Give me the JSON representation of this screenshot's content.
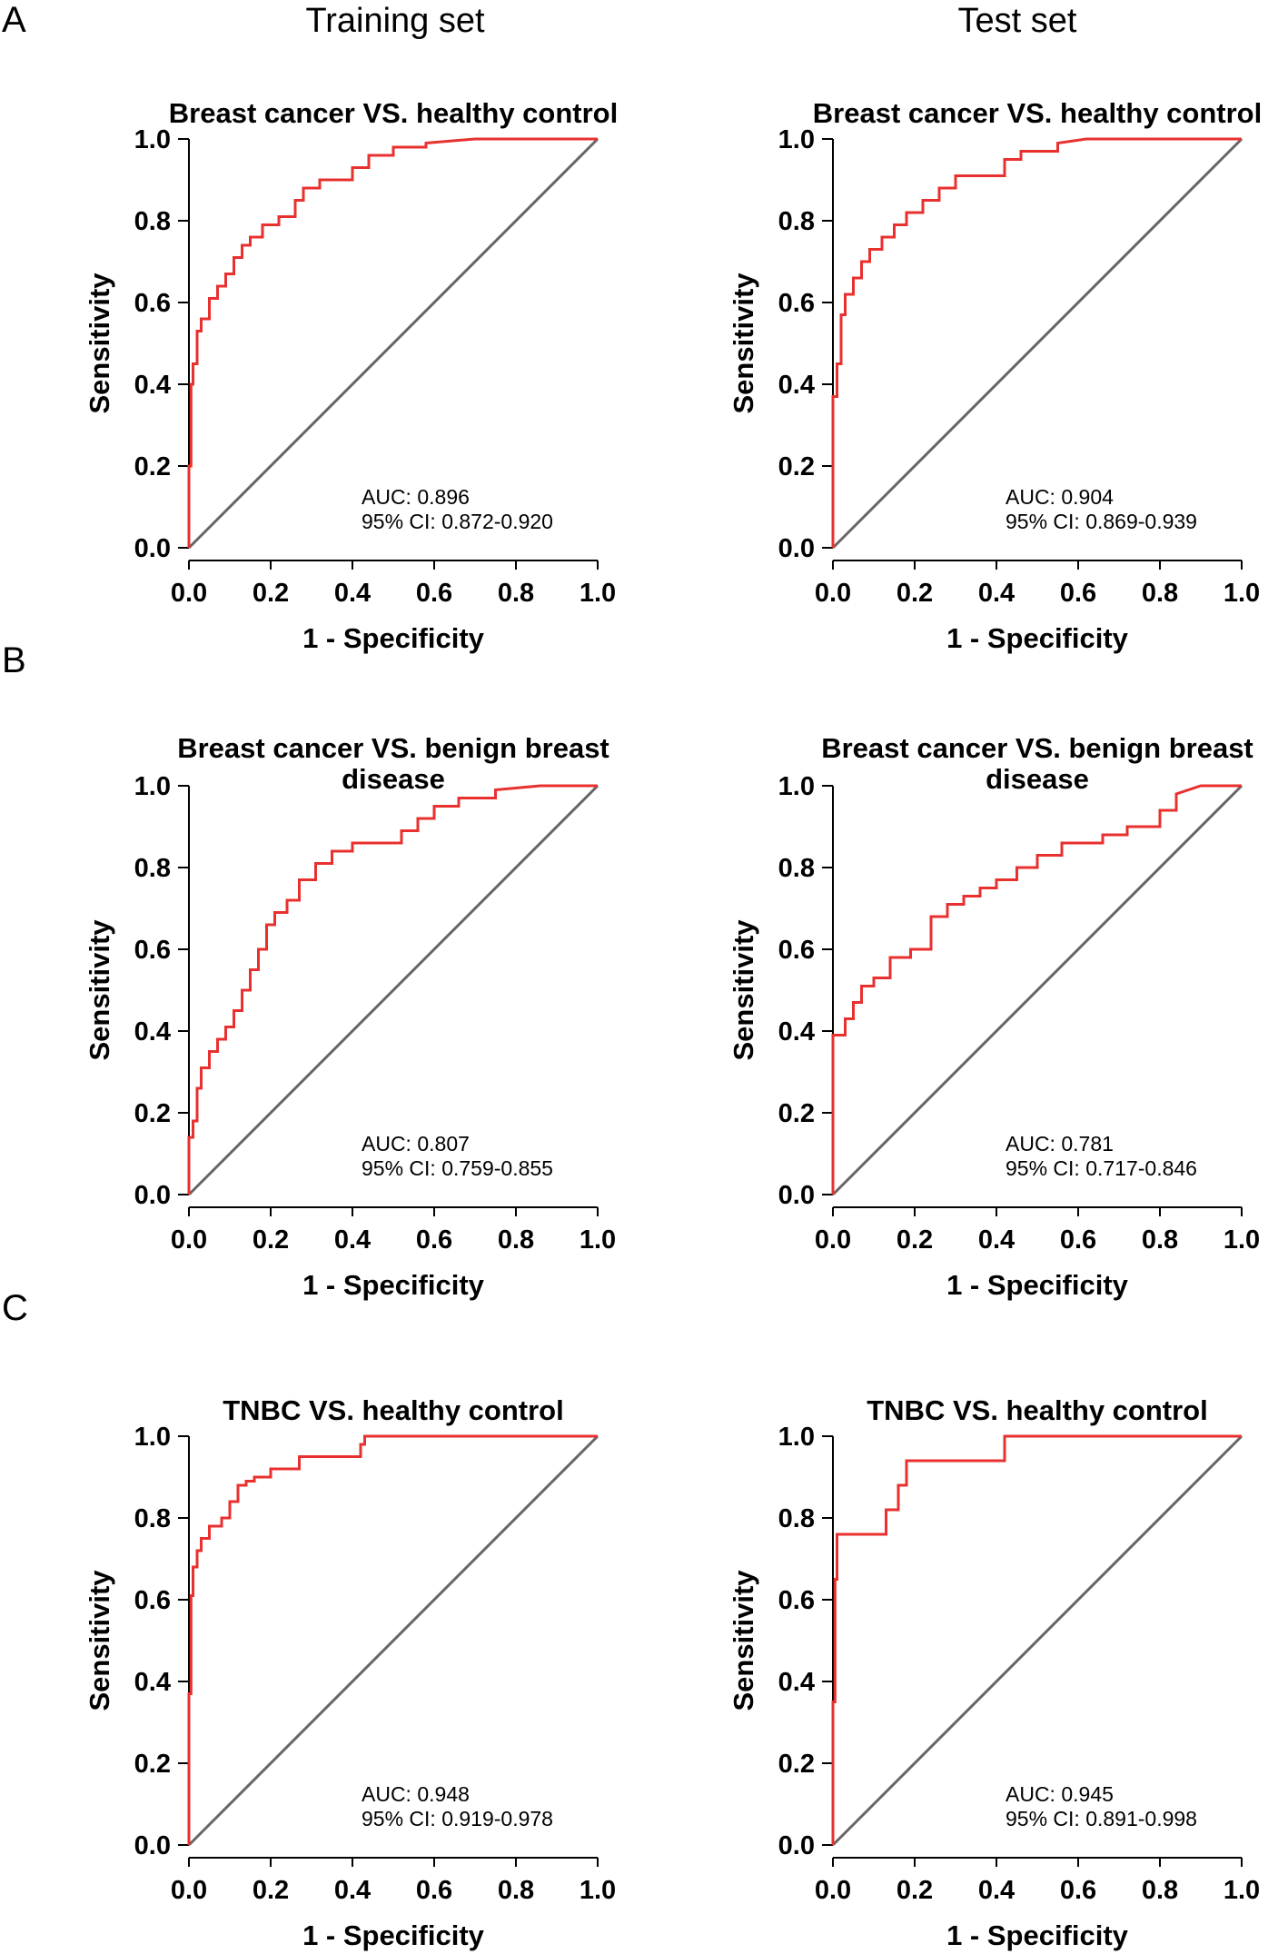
{
  "column_headers": [
    "Training set",
    "Test set"
  ],
  "panel_letters": [
    "A",
    "B",
    "C"
  ],
  "chart_data": [
    {
      "type": "line",
      "panel": "A",
      "set": "Training set",
      "title": [
        "Breast cancer VS. healthy control"
      ],
      "xlabel": "1 - Specificity",
      "ylabel": "Sensitivity",
      "xlim": [
        0,
        1
      ],
      "ylim": [
        0,
        1
      ],
      "xticks": [
        "0.0",
        "0.2",
        "0.4",
        "0.6",
        "0.8",
        "1.0"
      ],
      "yticks": [
        "0.0",
        "0.2",
        "0.4",
        "0.6",
        "0.8",
        "1.0"
      ],
      "annotation": [
        "AUC: 0.896",
        "95% CI: 0.872-0.920"
      ],
      "series": [
        {
          "name": "ROC",
          "color": "#e8312f",
          "x": [
            0,
            0,
            0.005,
            0.005,
            0.01,
            0.01,
            0.02,
            0.02,
            0.03,
            0.03,
            0.05,
            0.05,
            0.07,
            0.07,
            0.09,
            0.09,
            0.11,
            0.11,
            0.13,
            0.13,
            0.15,
            0.15,
            0.18,
            0.18,
            0.22,
            0.22,
            0.26,
            0.26,
            0.28,
            0.28,
            0.32,
            0.32,
            0.4,
            0.4,
            0.44,
            0.44,
            0.5,
            0.5,
            0.58,
            0.58,
            0.7,
            1.0
          ],
          "y": [
            0,
            0.2,
            0.2,
            0.4,
            0.4,
            0.45,
            0.45,
            0.53,
            0.53,
            0.56,
            0.56,
            0.61,
            0.61,
            0.64,
            0.64,
            0.67,
            0.67,
            0.71,
            0.71,
            0.74,
            0.74,
            0.76,
            0.76,
            0.79,
            0.79,
            0.81,
            0.81,
            0.85,
            0.85,
            0.88,
            0.88,
            0.9,
            0.9,
            0.93,
            0.93,
            0.96,
            0.96,
            0.98,
            0.98,
            0.99,
            1.0,
            1.0
          ]
        },
        {
          "name": "Reference",
          "color": "#666666",
          "x": [
            0,
            1
          ],
          "y": [
            0,
            1
          ]
        }
      ]
    },
    {
      "type": "line",
      "panel": "A",
      "set": "Test set",
      "title": [
        "Breast cancer VS. healthy control"
      ],
      "xlabel": "1 - Specificity",
      "ylabel": "Sensitivity",
      "xlim": [
        0,
        1
      ],
      "ylim": [
        0,
        1
      ],
      "xticks": [
        "0.0",
        "0.2",
        "0.4",
        "0.6",
        "0.8",
        "1.0"
      ],
      "yticks": [
        "0.0",
        "0.2",
        "0.4",
        "0.6",
        "0.8",
        "1.0"
      ],
      "annotation": [
        "AUC: 0.904",
        "95% CI: 0.869-0.939"
      ],
      "series": [
        {
          "name": "ROC",
          "color": "#e8312f",
          "x": [
            0,
            0,
            0.01,
            0.01,
            0.02,
            0.02,
            0.03,
            0.03,
            0.05,
            0.05,
            0.07,
            0.07,
            0.09,
            0.09,
            0.12,
            0.12,
            0.15,
            0.15,
            0.18,
            0.18,
            0.22,
            0.22,
            0.26,
            0.26,
            0.3,
            0.3,
            0.42,
            0.42,
            0.46,
            0.46,
            0.55,
            0.55,
            0.62,
            1.0
          ],
          "y": [
            0,
            0.37,
            0.37,
            0.45,
            0.45,
            0.57,
            0.57,
            0.62,
            0.62,
            0.66,
            0.66,
            0.7,
            0.7,
            0.73,
            0.73,
            0.76,
            0.76,
            0.79,
            0.79,
            0.82,
            0.82,
            0.85,
            0.85,
            0.88,
            0.88,
            0.91,
            0.91,
            0.95,
            0.95,
            0.97,
            0.97,
            0.99,
            1.0,
            1.0
          ]
        },
        {
          "name": "Reference",
          "color": "#666666",
          "x": [
            0,
            1
          ],
          "y": [
            0,
            1
          ]
        }
      ]
    },
    {
      "type": "line",
      "panel": "B",
      "set": "Training set",
      "title": [
        "Breast cancer VS. benign breast",
        "disease"
      ],
      "xlabel": "1 - Specificity",
      "ylabel": "Sensitivity",
      "xlim": [
        0,
        1
      ],
      "ylim": [
        0,
        1
      ],
      "xticks": [
        "0.0",
        "0.2",
        "0.4",
        "0.6",
        "0.8",
        "1.0"
      ],
      "yticks": [
        "0.0",
        "0.2",
        "0.4",
        "0.6",
        "0.8",
        "1.0"
      ],
      "annotation": [
        "AUC: 0.807",
        "95% CI: 0.759-0.855"
      ],
      "series": [
        {
          "name": "ROC",
          "color": "#e8312f",
          "x": [
            0,
            0,
            0.01,
            0.01,
            0.02,
            0.02,
            0.03,
            0.03,
            0.05,
            0.05,
            0.07,
            0.07,
            0.09,
            0.09,
            0.11,
            0.11,
            0.13,
            0.13,
            0.15,
            0.15,
            0.17,
            0.17,
            0.19,
            0.19,
            0.21,
            0.21,
            0.24,
            0.24,
            0.27,
            0.27,
            0.31,
            0.31,
            0.35,
            0.35,
            0.4,
            0.4,
            0.52,
            0.52,
            0.56,
            0.56,
            0.6,
            0.6,
            0.66,
            0.66,
            0.75,
            0.75,
            0.86,
            1.0
          ],
          "y": [
            0,
            0.14,
            0.14,
            0.18,
            0.18,
            0.26,
            0.26,
            0.31,
            0.31,
            0.35,
            0.35,
            0.38,
            0.38,
            0.41,
            0.41,
            0.45,
            0.45,
            0.5,
            0.5,
            0.55,
            0.55,
            0.6,
            0.6,
            0.66,
            0.66,
            0.69,
            0.69,
            0.72,
            0.72,
            0.77,
            0.77,
            0.81,
            0.81,
            0.84,
            0.84,
            0.86,
            0.86,
            0.89,
            0.89,
            0.92,
            0.92,
            0.95,
            0.95,
            0.97,
            0.97,
            0.99,
            1.0,
            1.0
          ]
        },
        {
          "name": "Reference",
          "color": "#666666",
          "x": [
            0,
            1
          ],
          "y": [
            0,
            1
          ]
        }
      ]
    },
    {
      "type": "line",
      "panel": "B",
      "set": "Test set",
      "title": [
        "Breast cancer VS. benign breast",
        "disease"
      ],
      "xlabel": "1 - Specificity",
      "ylabel": "Sensitivity",
      "xlim": [
        0,
        1
      ],
      "ylim": [
        0,
        1
      ],
      "xticks": [
        "0.0",
        "0.2",
        "0.4",
        "0.6",
        "0.8",
        "1.0"
      ],
      "yticks": [
        "0.0",
        "0.2",
        "0.4",
        "0.6",
        "0.8",
        "1.0"
      ],
      "annotation": [
        "AUC: 0.781",
        "95% CI: 0.717-0.846"
      ],
      "series": [
        {
          "name": "ROC",
          "color": "#e8312f",
          "x": [
            0,
            0,
            0.03,
            0.03,
            0.05,
            0.05,
            0.07,
            0.07,
            0.1,
            0.1,
            0.14,
            0.14,
            0.19,
            0.19,
            0.24,
            0.24,
            0.28,
            0.28,
            0.32,
            0.32,
            0.36,
            0.36,
            0.4,
            0.4,
            0.45,
            0.45,
            0.5,
            0.5,
            0.56,
            0.56,
            0.66,
            0.66,
            0.72,
            0.72,
            0.8,
            0.8,
            0.84,
            0.84,
            0.9,
            1.0
          ],
          "y": [
            0,
            0.39,
            0.39,
            0.43,
            0.43,
            0.47,
            0.47,
            0.51,
            0.51,
            0.53,
            0.53,
            0.58,
            0.58,
            0.6,
            0.6,
            0.68,
            0.68,
            0.71,
            0.71,
            0.73,
            0.73,
            0.75,
            0.75,
            0.77,
            0.77,
            0.8,
            0.8,
            0.83,
            0.83,
            0.86,
            0.86,
            0.88,
            0.88,
            0.9,
            0.9,
            0.94,
            0.94,
            0.98,
            1.0,
            1.0
          ]
        },
        {
          "name": "Reference",
          "color": "#666666",
          "x": [
            0,
            1
          ],
          "y": [
            0,
            1
          ]
        }
      ]
    },
    {
      "type": "line",
      "panel": "C",
      "set": "Training set",
      "title": [
        "TNBC VS. healthy control"
      ],
      "xlabel": "1 - Specificity",
      "ylabel": "Sensitivity",
      "xlim": [
        0,
        1
      ],
      "ylim": [
        0,
        1
      ],
      "xticks": [
        "0.0",
        "0.2",
        "0.4",
        "0.6",
        "0.8",
        "1.0"
      ],
      "yticks": [
        "0.0",
        "0.2",
        "0.4",
        "0.6",
        "0.8",
        "1.0"
      ],
      "annotation": [
        "AUC: 0.948",
        "95% CI: 0.919-0.978"
      ],
      "series": [
        {
          "name": "ROC",
          "color": "#e8312f",
          "x": [
            0,
            0,
            0.005,
            0.005,
            0.01,
            0.01,
            0.02,
            0.02,
            0.03,
            0.03,
            0.05,
            0.05,
            0.08,
            0.08,
            0.1,
            0.1,
            0.12,
            0.12,
            0.14,
            0.14,
            0.16,
            0.16,
            0.2,
            0.2,
            0.27,
            0.27,
            0.42,
            0.42,
            0.43,
            0.43,
            1.0
          ],
          "y": [
            0,
            0.37,
            0.37,
            0.61,
            0.61,
            0.68,
            0.68,
            0.72,
            0.72,
            0.75,
            0.75,
            0.78,
            0.78,
            0.8,
            0.8,
            0.84,
            0.84,
            0.88,
            0.88,
            0.89,
            0.89,
            0.9,
            0.9,
            0.92,
            0.92,
            0.95,
            0.95,
            0.98,
            0.98,
            1.0,
            1.0
          ]
        },
        {
          "name": "Reference",
          "color": "#666666",
          "x": [
            0,
            1
          ],
          "y": [
            0,
            1
          ]
        }
      ]
    },
    {
      "type": "line",
      "panel": "C",
      "set": "Test set",
      "title": [
        "TNBC VS. healthy control"
      ],
      "xlabel": "1 - Specificity",
      "ylabel": "Sensitivity",
      "xlim": [
        0,
        1
      ],
      "ylim": [
        0,
        1
      ],
      "xticks": [
        "0.0",
        "0.2",
        "0.4",
        "0.6",
        "0.8",
        "1.0"
      ],
      "yticks": [
        "0.0",
        "0.2",
        "0.4",
        "0.6",
        "0.8",
        "1.0"
      ],
      "annotation": [
        "AUC: 0.945",
        "95% CI: 0.891-0.998"
      ],
      "series": [
        {
          "name": "ROC",
          "color": "#e8312f",
          "x": [
            0,
            0,
            0.005,
            0.005,
            0.01,
            0.01,
            0.13,
            0.13,
            0.16,
            0.16,
            0.18,
            0.18,
            0.42,
            0.42,
            1.0
          ],
          "y": [
            0,
            0.35,
            0.35,
            0.65,
            0.65,
            0.76,
            0.76,
            0.82,
            0.82,
            0.88,
            0.88,
            0.94,
            0.94,
            1.0,
            1.0
          ]
        },
        {
          "name": "Reference",
          "color": "#666666",
          "x": [
            0,
            1
          ],
          "y": [
            0,
            1
          ]
        }
      ]
    }
  ]
}
